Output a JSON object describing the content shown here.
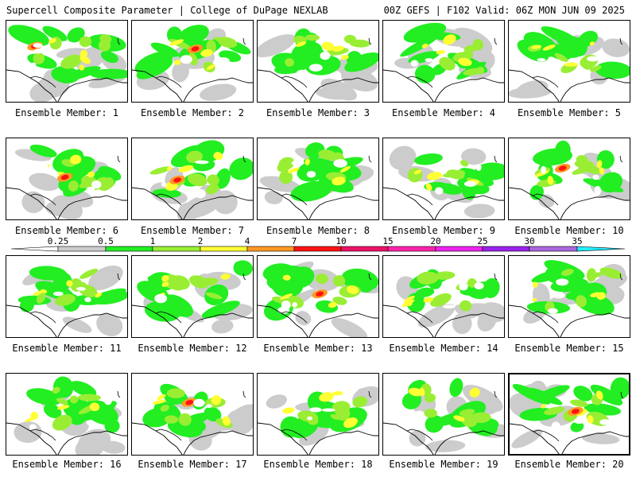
{
  "header": {
    "left_title": "Supercell Composite Parameter | College of DuPage NEXLAB",
    "right_title": "00Z GEFS | F102 Valid: 06Z MON JUN 09 2025"
  },
  "legend": {
    "labels": [
      "0.25",
      "0.5",
      "1",
      "2",
      "4",
      "7",
      "10",
      "15",
      "20",
      "25",
      "30",
      "35"
    ],
    "colors": [
      "#cccccc",
      "#22ee22",
      "#99ee33",
      "#ffff33",
      "#ff9922",
      "#ff1111",
      "#ee1166",
      "#ff22aa",
      "#ee22ee",
      "#9922ee",
      "#aa66dd",
      "#22eeff"
    ]
  },
  "panels": [
    {
      "caption": "Ensemble Member: 1"
    },
    {
      "caption": "Ensemble Member: 2"
    },
    {
      "caption": "Ensemble Member: 3"
    },
    {
      "caption": "Ensemble Member: 4"
    },
    {
      "caption": "Ensemble Member: 5"
    },
    {
      "caption": "Ensemble Member: 6"
    },
    {
      "caption": "Ensemble Member: 7"
    },
    {
      "caption": "Ensemble Member: 8"
    },
    {
      "caption": "Ensemble Member: 9"
    },
    {
      "caption": "Ensemble Member: 10"
    },
    {
      "caption": "Ensemble Member: 11"
    },
    {
      "caption": "Ensemble Member: 12"
    },
    {
      "caption": "Ensemble Member: 13"
    },
    {
      "caption": "Ensemble Member: 14"
    },
    {
      "caption": "Ensemble Member: 15"
    },
    {
      "caption": "Ensemble Member: 16"
    },
    {
      "caption": "Ensemble Member: 17"
    },
    {
      "caption": "Ensemble Member: 18"
    },
    {
      "caption": "Ensemble Member: 19"
    },
    {
      "caption": "Ensemble Member: 20"
    }
  ]
}
